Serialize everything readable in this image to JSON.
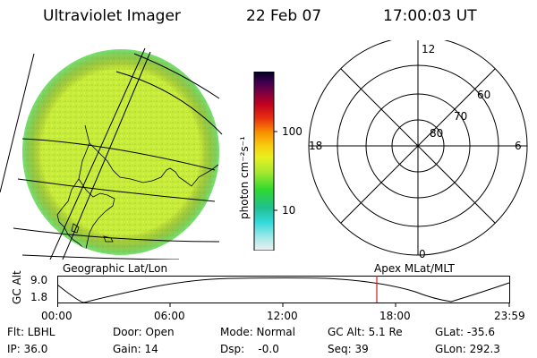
{
  "header": {
    "title": "Ultraviolet Imager",
    "date": "22 Feb 07",
    "time": "17:00:03 UT"
  },
  "colorbar": {
    "unit_label": "photon cm⁻²s⁻¹",
    "tick_100": "100",
    "tick_10": "10",
    "scale": "log",
    "colors": [
      "#f0f0f0",
      "#9ae8e8",
      "#30d8d8",
      "#20c090",
      "#30d830",
      "#a8e830",
      "#e8f020",
      "#f8d010",
      "#f89000",
      "#e83010",
      "#c00020",
      "#800040",
      "#400050",
      "#000020"
    ]
  },
  "polar": {
    "top_label": "12",
    "left_label": "18",
    "right_label": "6",
    "bottom_label": "0",
    "ring_labels": [
      "60",
      "70",
      "80"
    ]
  },
  "panel_labels": {
    "left": "Geographic Lat/Lon",
    "right": "Apex MLat/MLT"
  },
  "altitude_plot": {
    "ylabel": "GC Alt",
    "ytick_top": "9.0",
    "ytick_bottom": "1.8",
    "x_ticks": [
      "00:00",
      "06:00",
      "12:00",
      "18:00",
      "23:59"
    ],
    "marker_color": "#cc2020"
  },
  "info": {
    "filter": "Flt: LBHL",
    "door": "Door: Open",
    "mode": "Mode: Normal",
    "gc_alt": "GC Alt: 5.1 Re",
    "glat": "GLat: -35.6",
    "ip": "IP: 36.0",
    "gain": "Gain: 14",
    "dsp": "Dsp:    -0.0",
    "seq": "Seq: 39",
    "glon": "GLon: 292.3"
  }
}
